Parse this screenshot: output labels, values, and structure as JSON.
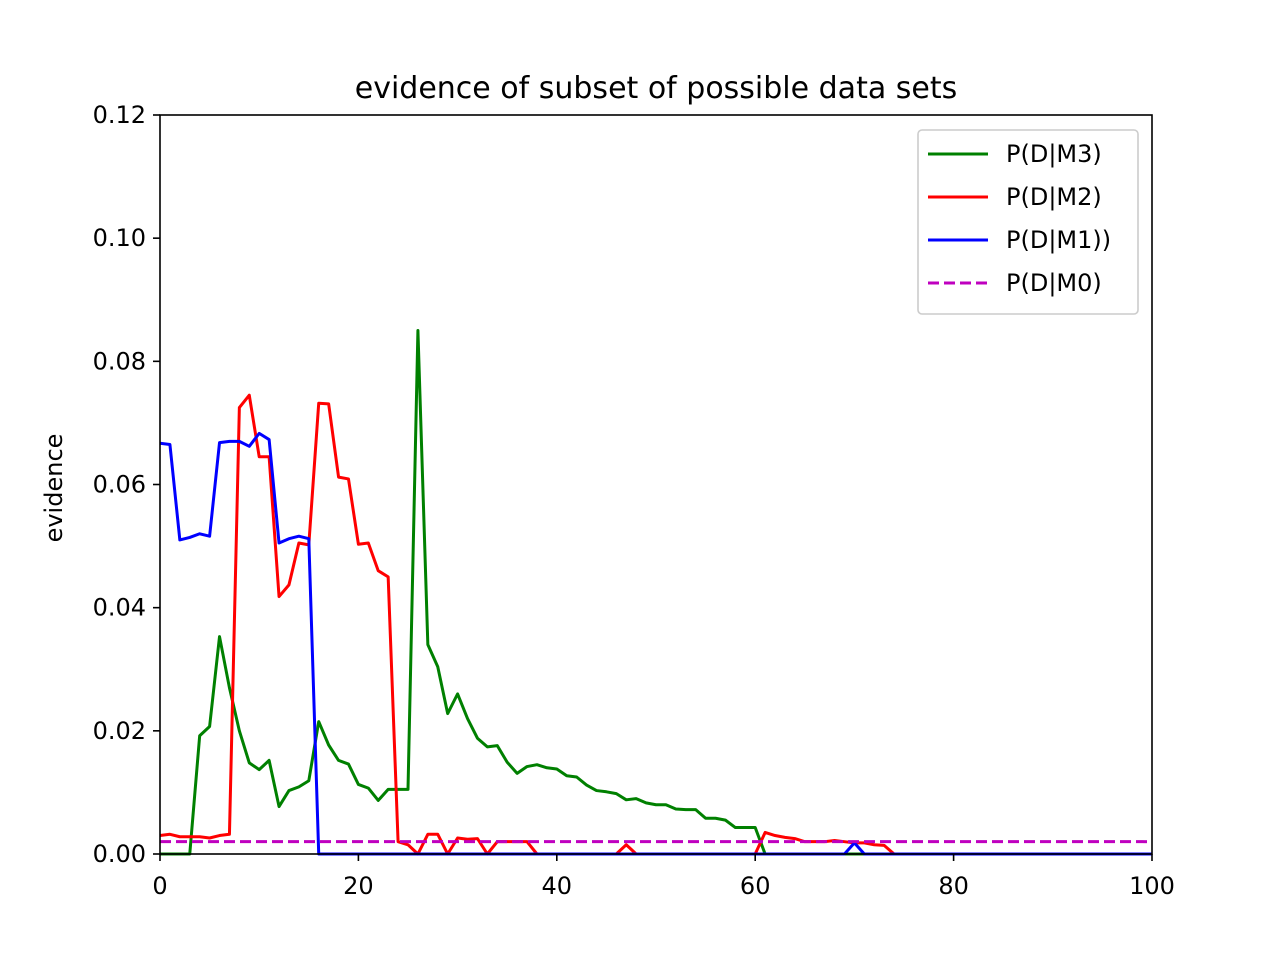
{
  "chart_data": {
    "type": "line",
    "title": "evidence of subset of possible data sets",
    "xlabel": "",
    "ylabel": "evidence",
    "xlim": [
      0,
      100
    ],
    "ylim": [
      0,
      0.12
    ],
    "xticks": [
      0,
      20,
      40,
      60,
      80,
      100
    ],
    "xtick_labels": [
      "0",
      "20",
      "40",
      "60",
      "80",
      "100"
    ],
    "yticks": [
      0,
      0.02,
      0.04,
      0.06,
      0.08,
      0.1,
      0.12
    ],
    "ytick_labels": [
      "0.00",
      "0.02",
      "0.04",
      "0.06",
      "0.08",
      "0.10",
      "0.12"
    ],
    "grid": false,
    "legend_position": "top-right",
    "series": [
      {
        "name": "P(D|M3)",
        "color": "#008000",
        "dash": "solid",
        "x": [
          0,
          1,
          2,
          3,
          4,
          5,
          6,
          7,
          8,
          9,
          10,
          11,
          12,
          13,
          14,
          15,
          16,
          17,
          18,
          19,
          20,
          21,
          22,
          23,
          24,
          25,
          26,
          27,
          28,
          29,
          30,
          31,
          32,
          33,
          34,
          35,
          36,
          37,
          38,
          39,
          40,
          41,
          42,
          43,
          44,
          45,
          46,
          47,
          48,
          49,
          50,
          51,
          52,
          53,
          54,
          55,
          56,
          57,
          58,
          59,
          60,
          61,
          62,
          63,
          64,
          65,
          66,
          67,
          68,
          69,
          70,
          71,
          72,
          73,
          74,
          75,
          76,
          77,
          78,
          79,
          80,
          81,
          82,
          83,
          84,
          85,
          86,
          87,
          88,
          89,
          90,
          91,
          92,
          93,
          94,
          95,
          96,
          97,
          98,
          99,
          100
        ],
        "y": [
          0,
          0,
          0,
          0,
          0.0192,
          0.0207,
          0.0353,
          0.027,
          0.02,
          0.0148,
          0.0137,
          0.0152,
          0.0077,
          0.0103,
          0.0109,
          0.0119,
          0.0215,
          0.0177,
          0.0152,
          0.0146,
          0.0113,
          0.0107,
          0.0087,
          0.0105,
          0.0105,
          0.0105,
          0.085,
          0.034,
          0.0304,
          0.0228,
          0.026,
          0.022,
          0.0188,
          0.0174,
          0.0176,
          0.0149,
          0.0131,
          0.0142,
          0.0145,
          0.014,
          0.0138,
          0.0127,
          0.0125,
          0.0112,
          0.0103,
          0.0101,
          0.0098,
          0.0088,
          0.009,
          0.0083,
          0.008,
          0.008,
          0.0073,
          0.0072,
          0.0072,
          0.0058,
          0.0058,
          0.0055,
          0.0043,
          0.0043,
          0.0043,
          0,
          0,
          0,
          0,
          0,
          0,
          0,
          0,
          0,
          0,
          0,
          0,
          0,
          0,
          0,
          0,
          0,
          0,
          0,
          0,
          0,
          0,
          0,
          0,
          0,
          0,
          0,
          0,
          0,
          0,
          0,
          0,
          0,
          0,
          0,
          0,
          0,
          0,
          0,
          0
        ]
      },
      {
        "name": "P(D|M2)",
        "color": "#ff0000",
        "dash": "solid",
        "x": [
          0,
          1,
          2,
          3,
          4,
          5,
          6,
          7,
          8,
          9,
          10,
          11,
          12,
          13,
          14,
          15,
          16,
          17,
          18,
          19,
          20,
          21,
          22,
          23,
          24,
          25,
          26,
          27,
          28,
          29,
          30,
          31,
          32,
          33,
          34,
          35,
          36,
          37,
          38,
          39,
          40,
          41,
          42,
          43,
          44,
          45,
          46,
          47,
          48,
          49,
          50,
          51,
          52,
          53,
          54,
          55,
          56,
          57,
          58,
          59,
          60,
          61,
          62,
          63,
          64,
          65,
          66,
          67,
          68,
          69,
          70,
          71,
          72,
          73,
          74,
          75,
          76,
          77,
          78,
          79,
          80,
          81,
          82,
          83,
          84,
          85,
          86,
          87,
          88,
          89,
          90,
          91,
          92,
          93,
          94,
          95,
          96,
          97,
          98,
          99,
          100
        ],
        "y": [
          0.003,
          0.0032,
          0.0028,
          0.0028,
          0.0028,
          0.0026,
          0.003,
          0.0032,
          0.0725,
          0.0745,
          0.0645,
          0.0645,
          0.0418,
          0.0437,
          0.0505,
          0.0502,
          0.0732,
          0.0731,
          0.0612,
          0.0609,
          0.0503,
          0.0505,
          0.046,
          0.045,
          0.002,
          0.0015,
          0,
          0.0032,
          0.0032,
          0,
          0.0026,
          0.0024,
          0.0025,
          0,
          0.002,
          0.002,
          0.002,
          0.002,
          0,
          0,
          0,
          0,
          0,
          0,
          0,
          0,
          0,
          0.0015,
          0,
          0,
          0,
          0,
          0,
          0,
          0,
          0,
          0,
          0,
          0,
          0,
          0,
          0.0035,
          0.003,
          0.0027,
          0.0025,
          0.002,
          0.002,
          0.002,
          0.0022,
          0.002,
          0.0018,
          0.0018,
          0.0015,
          0.0014,
          0,
          0,
          0,
          0,
          0,
          0,
          0,
          0,
          0,
          0,
          0,
          0,
          0,
          0,
          0,
          0,
          0,
          0,
          0,
          0,
          0,
          0,
          0,
          0,
          0,
          0,
          0
        ]
      },
      {
        "name": "P(D|M1))",
        "color": "#0000ff",
        "dash": "solid",
        "x": [
          0,
          1,
          2,
          3,
          4,
          5,
          6,
          7,
          8,
          9,
          10,
          11,
          12,
          13,
          14,
          15,
          16,
          17,
          18,
          19,
          20,
          21,
          22,
          23,
          24,
          25,
          26,
          27,
          28,
          29,
          30,
          31,
          32,
          33,
          34,
          35,
          36,
          37,
          38,
          39,
          40,
          41,
          42,
          43,
          44,
          45,
          46,
          47,
          48,
          49,
          50,
          51,
          52,
          53,
          54,
          55,
          56,
          57,
          58,
          59,
          60,
          61,
          62,
          63,
          64,
          65,
          66,
          67,
          68,
          69,
          70,
          71,
          72,
          73,
          74,
          75,
          76,
          77,
          78,
          79,
          80,
          81,
          82,
          83,
          84,
          85,
          86,
          87,
          88,
          89,
          90,
          91,
          92,
          93,
          94,
          95,
          96,
          97,
          98,
          99,
          100
        ],
        "y": [
          0.0667,
          0.0665,
          0.051,
          0.0514,
          0.052,
          0.0516,
          0.0668,
          0.067,
          0.067,
          0.0662,
          0.0683,
          0.0673,
          0.0505,
          0.0512,
          0.0516,
          0.0512,
          0,
          0,
          0,
          0,
          0,
          0,
          0,
          0,
          0,
          0,
          0,
          0,
          0,
          0,
          0,
          0,
          0,
          0,
          0,
          0,
          0,
          0,
          0,
          0,
          0,
          0,
          0,
          0,
          0,
          0,
          0,
          0,
          0,
          0,
          0,
          0,
          0,
          0,
          0,
          0,
          0,
          0,
          0,
          0,
          0,
          0,
          0,
          0,
          0,
          0,
          0,
          0,
          0,
          0,
          0.0018,
          0,
          0,
          0,
          0,
          0,
          0,
          0,
          0,
          0,
          0,
          0,
          0,
          0,
          0,
          0,
          0,
          0,
          0,
          0,
          0,
          0,
          0,
          0,
          0,
          0,
          0,
          0,
          0,
          0,
          0
        ]
      },
      {
        "name": "P(D|M0)",
        "color": "#bf00bf",
        "dash": "dashed",
        "x": [
          0,
          100
        ],
        "y": [
          0.002,
          0.002
        ]
      }
    ]
  }
}
